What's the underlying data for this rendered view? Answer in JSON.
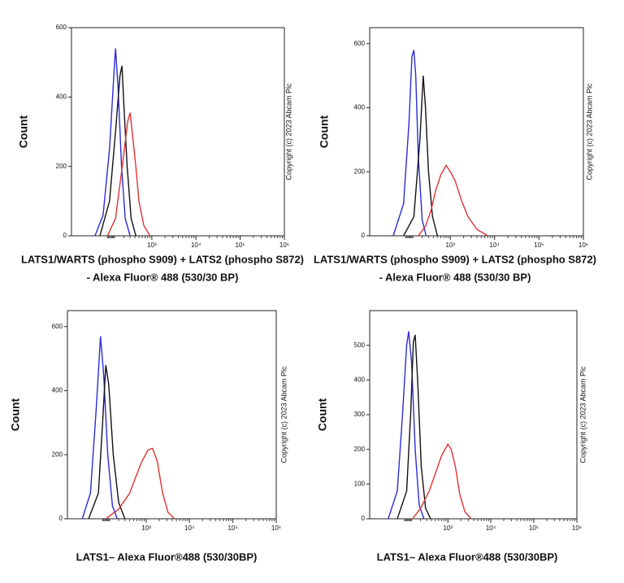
{
  "chart_data": [
    {
      "type": "line",
      "ylabel": "Count",
      "xlabel": [
        "LATS1/WARTS (phospho S909) + LATS2 (phospho S872)",
        "- Alexa Fluor® 488 (530/30 BP)"
      ],
      "annotation": "Copyright (c) 2023 Abcam Plc",
      "xscale": "biexponential",
      "xlim": [
        -500,
        1000000
      ],
      "xticks": [
        {
          "value": 1000,
          "label": "10³"
        },
        {
          "value": 10000,
          "label": "10⁴"
        },
        {
          "value": 100000,
          "label": "10⁵"
        },
        {
          "value": 1000000,
          "label": "10⁶"
        }
      ],
      "ylim": [
        0,
        600
      ],
      "yticks": [
        0,
        200,
        400,
        600
      ],
      "series": [
        {
          "color": "#2b2bd8",
          "x": [
            -100,
            -20,
            40,
            80,
            100,
            130,
            170,
            220,
            300
          ],
          "values": [
            0,
            60,
            250,
            450,
            540,
            420,
            200,
            50,
            0
          ]
        },
        {
          "color": "#111111",
          "x": [
            -50,
            40,
            100,
            150,
            175,
            200,
            250,
            320,
            420
          ],
          "values": [
            0,
            100,
            300,
            460,
            490,
            380,
            200,
            50,
            0
          ]
        },
        {
          "color": "#e03232",
          "x": [
            20,
            100,
            180,
            260,
            300,
            340,
            420,
            500,
            650,
            900
          ],
          "values": [
            0,
            50,
            200,
            330,
            355,
            300,
            200,
            100,
            30,
            0
          ]
        }
      ]
    },
    {
      "type": "line",
      "ylabel": "Count",
      "xlabel": [
        "LATS1/WARTS (phospho S909) + LATS2 (phospho S872)",
        "- Alexa Fluor® 488 (530/30 BP)"
      ],
      "annotation": "Copyright (c) 2023 Abcam Plc",
      "xscale": "biexponential",
      "xlim": [
        -500,
        1000000
      ],
      "xticks": [
        {
          "value": 1000,
          "label": "10³"
        },
        {
          "value": 10000,
          "label": "10⁴"
        },
        {
          "value": 100000,
          "label": "10⁵"
        },
        {
          "value": 1000000,
          "label": "10⁶"
        }
      ],
      "ylim": [
        0,
        650
      ],
      "yticks": [
        0,
        200,
        400,
        600
      ],
      "series": [
        {
          "color": "#2b2bd8",
          "x": [
            -100,
            0,
            50,
            80,
            100,
            120,
            150,
            200,
            260
          ],
          "values": [
            0,
            100,
            350,
            560,
            580,
            500,
            250,
            50,
            0
          ]
        },
        {
          "color": "#111111",
          "x": [
            0,
            100,
            170,
            215,
            250,
            300,
            380,
            500
          ],
          "values": [
            0,
            60,
            300,
            500,
            400,
            200,
            60,
            0
          ]
        },
        {
          "color": "#e03232",
          "x": [
            150,
            250,
            350,
            450,
            600,
            800,
            1000,
            1300,
            1800,
            2500,
            4000,
            7000
          ],
          "values": [
            0,
            30,
            80,
            140,
            190,
            220,
            200,
            170,
            110,
            60,
            20,
            0
          ]
        }
      ]
    },
    {
      "type": "line",
      "ylabel": "Count",
      "xlabel": [
        "LATS1– Alexa Fluor®488 (530/30BP)"
      ],
      "annotation": "Copyright (c) 2023 Abcam Plc",
      "xscale": "biexponential",
      "xlim": [
        -500,
        1000000
      ],
      "xticks": [
        {
          "value": 1000,
          "label": "10³"
        },
        {
          "value": 10000,
          "label": "10⁴"
        },
        {
          "value": 100000,
          "label": "10⁵"
        },
        {
          "value": 1000000,
          "label": "10⁶"
        }
      ],
      "ylim": [
        0,
        650
      ],
      "yticks": [
        0,
        200,
        400,
        600
      ],
      "series": [
        {
          "color": "#2b2bd8",
          "x": [
            -200,
            -100,
            -40,
            0,
            30,
            70,
            120,
            180
          ],
          "values": [
            0,
            80,
            350,
            570,
            450,
            200,
            40,
            0
          ]
        },
        {
          "color": "#111111",
          "x": [
            -120,
            -20,
            20,
            50,
            80,
            130,
            200,
            300
          ],
          "values": [
            0,
            80,
            300,
            480,
            420,
            200,
            50,
            0
          ]
        },
        {
          "color": "#e03232",
          "x": [
            50,
            200,
            400,
            600,
            800,
            1100,
            1400,
            1800,
            2400,
            3200,
            4500
          ],
          "values": [
            0,
            30,
            80,
            140,
            180,
            215,
            220,
            180,
            80,
            20,
            0
          ]
        }
      ]
    },
    {
      "type": "line",
      "ylabel": "Count",
      "xlabel": [
        "LATS1– Alexa Fluor®488 (530/30BP)"
      ],
      "annotation": "Copyright (c) 2023 Abcam Plc",
      "xscale": "biexponential",
      "xlim": [
        -500,
        1000000
      ],
      "xticks": [
        {
          "value": 1000,
          "label": "10³"
        },
        {
          "value": 10000,
          "label": "10⁴"
        },
        {
          "value": 100000,
          "label": "10⁵"
        },
        {
          "value": 1000000,
          "label": "10⁶"
        }
      ],
      "ylim": [
        0,
        600
      ],
      "yticks": [
        0,
        100,
        200,
        300,
        400,
        500
      ],
      "series": [
        {
          "color": "#2b2bd8",
          "x": [
            -150,
            -50,
            0,
            40,
            60,
            90,
            130,
            180,
            250
          ],
          "values": [
            0,
            80,
            300,
            500,
            540,
            450,
            200,
            40,
            0
          ]
        },
        {
          "color": "#111111",
          "x": [
            -50,
            40,
            80,
            110,
            130,
            160,
            210,
            280,
            380
          ],
          "values": [
            0,
            80,
            300,
            510,
            530,
            400,
            150,
            30,
            0
          ]
        },
        {
          "color": "#e03232",
          "x": [
            100,
            200,
            350,
            500,
            700,
            1000,
            1200,
            1500,
            1900,
            2500,
            3500
          ],
          "values": [
            0,
            30,
            80,
            130,
            180,
            215,
            200,
            150,
            70,
            20,
            0
          ]
        }
      ]
    }
  ]
}
